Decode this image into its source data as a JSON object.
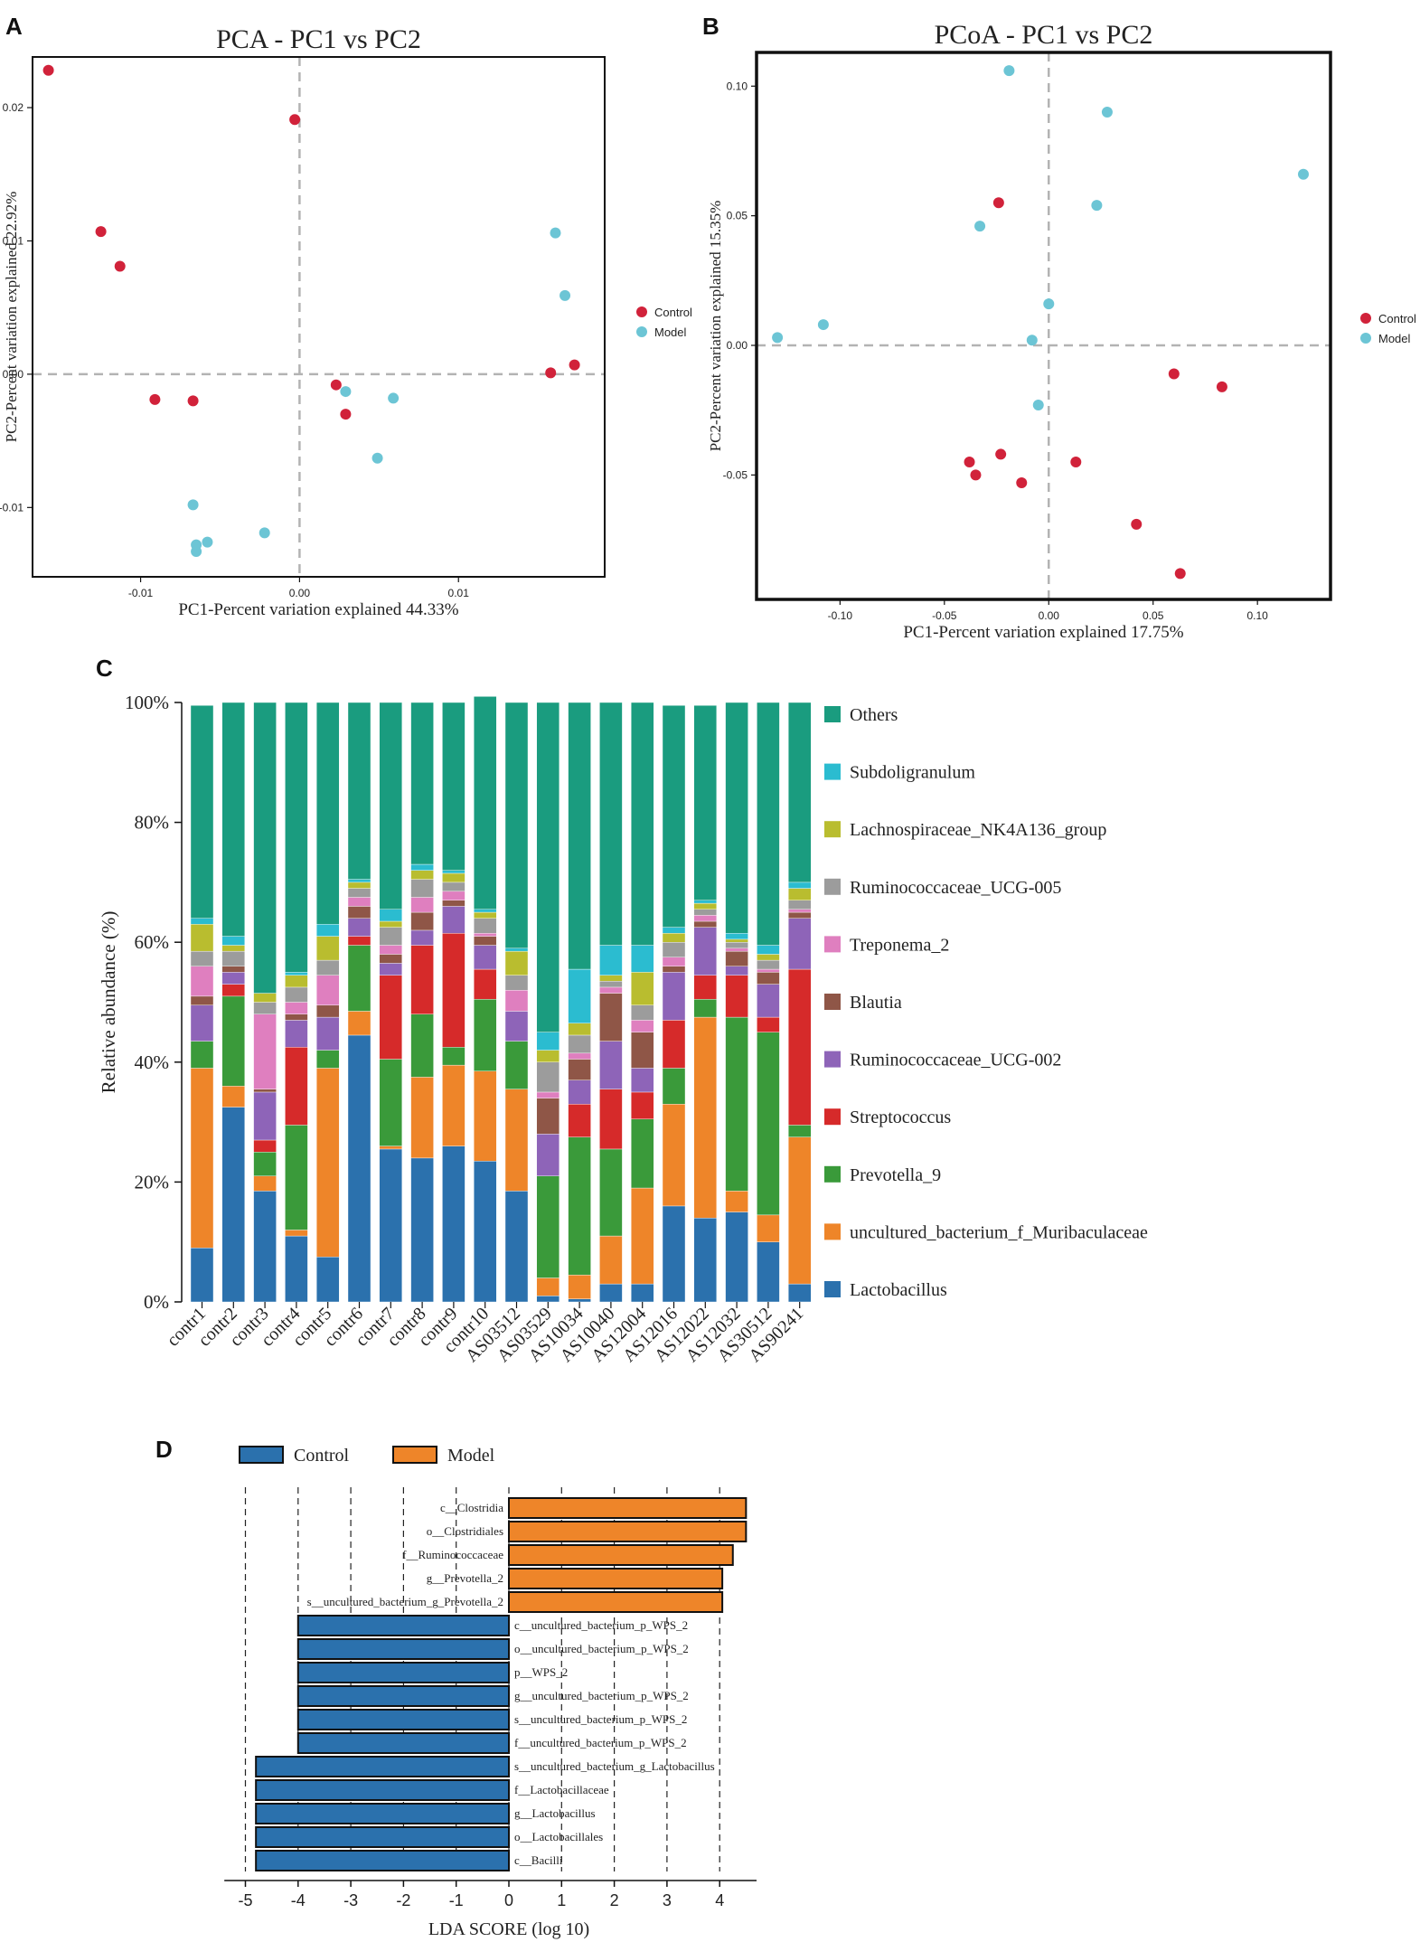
{
  "panels": {
    "a": "A",
    "b": "B",
    "c": "C",
    "d": "D"
  },
  "colors": {
    "control": "#d1223a",
    "model": "#6cc5d5",
    "lda_control": "#2b71ad",
    "lda_model": "#ee8529",
    "dashed": "#b3b3b3"
  },
  "chart_data": [
    {
      "id": "pca",
      "type": "scatter",
      "title": "PCA - PC1 vs PC2",
      "xlabel": "PC1-Percent variation explained 44.33%",
      "ylabel": "PC2-Percent variation explained 22.92%",
      "xlim": [
        -0.0168,
        0.0192
      ],
      "ylim": [
        -0.0152,
        0.0238
      ],
      "xticks": [
        -0.01,
        0.0,
        0.01
      ],
      "xtick_labels": [
        "-0.01",
        "0.00",
        "0.01"
      ],
      "yticks": [
        -0.01,
        0.0,
        0.01,
        0.02
      ],
      "ytick_labels": [
        "-0.01",
        "0.00",
        "0.01",
        "0.02"
      ],
      "legend": [
        "Control",
        "Model"
      ],
      "legend_position": "right",
      "series": [
        {
          "name": "Control",
          "points": [
            [
              -0.0158,
              0.0228
            ],
            [
              -0.0003,
              0.0191
            ],
            [
              -0.0125,
              0.0107
            ],
            [
              -0.0113,
              0.0081
            ],
            [
              -0.0091,
              -0.0019
            ],
            [
              -0.0067,
              -0.002
            ],
            [
              0.0023,
              -0.0008
            ],
            [
              0.0029,
              -0.003
            ],
            [
              0.0158,
              0.0001
            ],
            [
              0.0173,
              0.0007
            ]
          ]
        },
        {
          "name": "Model",
          "points": [
            [
              0.0161,
              0.0106
            ],
            [
              0.0167,
              0.0059
            ],
            [
              0.0029,
              -0.0013
            ],
            [
              0.0059,
              -0.0018
            ],
            [
              0.0049,
              -0.0063
            ],
            [
              -0.0067,
              -0.0098
            ],
            [
              -0.0022,
              -0.0119
            ],
            [
              -0.0058,
              -0.0126
            ],
            [
              -0.0065,
              -0.0128
            ],
            [
              -0.0065,
              -0.0133
            ]
          ]
        }
      ]
    },
    {
      "id": "pcoa",
      "type": "scatter",
      "title": "PCoA - PC1 vs PC2",
      "xlabel": "PC1-Percent variation explained 17.75%",
      "ylabel": "PC2-Percent variation explained 15.35%",
      "xlim": [
        -0.14,
        0.135
      ],
      "ylim": [
        -0.098,
        0.113
      ],
      "xticks": [
        -0.1,
        -0.05,
        0.0,
        0.05,
        0.1
      ],
      "xtick_labels": [
        "-0.10",
        "-0.05",
        "0.00",
        "0.05",
        "0.10"
      ],
      "yticks": [
        -0.05,
        0.0,
        0.05,
        0.1
      ],
      "ytick_labels": [
        "-0.05",
        "0.00",
        "0.05",
        "0.10"
      ],
      "legend": [
        "Control",
        "Model"
      ],
      "legend_position": "right",
      "series": [
        {
          "name": "Control",
          "points": [
            [
              -0.024,
              0.055
            ],
            [
              0.06,
              -0.011
            ],
            [
              0.083,
              -0.016
            ],
            [
              -0.023,
              -0.042
            ],
            [
              -0.038,
              -0.045
            ],
            [
              -0.035,
              -0.05
            ],
            [
              -0.013,
              -0.053
            ],
            [
              0.013,
              -0.045
            ],
            [
              0.042,
              -0.069
            ],
            [
              0.063,
              -0.088
            ]
          ]
        },
        {
          "name": "Model",
          "points": [
            [
              -0.019,
              0.106
            ],
            [
              0.028,
              0.09
            ],
            [
              0.122,
              0.066
            ],
            [
              0.023,
              0.054
            ],
            [
              -0.033,
              0.046
            ],
            [
              0.0,
              0.016
            ],
            [
              -0.13,
              0.003
            ],
            [
              -0.108,
              0.008
            ],
            [
              -0.008,
              0.002
            ],
            [
              -0.005,
              -0.023
            ]
          ]
        }
      ]
    },
    {
      "id": "composition",
      "type": "bar",
      "stacked": true,
      "ylabel": "Relative abundance (%)",
      "ylim": [
        0,
        100
      ],
      "yticks": [
        0,
        20,
        40,
        60,
        80,
        100
      ],
      "ytick_labels": [
        "0%",
        "20%",
        "40%",
        "60%",
        "80%",
        "100%"
      ],
      "categories": [
        "contr1",
        "contr2",
        "contr3",
        "contr4",
        "contr5",
        "contr6",
        "contr7",
        "contr8",
        "contr9",
        "contr10",
        "AS03512",
        "AS03529",
        "AS10034",
        "AS10040",
        "AS12004",
        "AS12016",
        "AS12022",
        "AS12032",
        "AS30512",
        "AS90241"
      ],
      "series": [
        {
          "name": "Lactobacillus",
          "color": "#2b71ad",
          "values": [
            9,
            32.5,
            18.5,
            11,
            7.5,
            44.5,
            25.5,
            24,
            26,
            23.5,
            18.5,
            1,
            0.5,
            3,
            3,
            16,
            14,
            15,
            10,
            3
          ]
        },
        {
          "name": "uncultured_bacterium_f_Muribaculaceae",
          "color": "#ee8529",
          "values": [
            30,
            3.5,
            2.5,
            1,
            31.5,
            4,
            0.5,
            13.5,
            13.5,
            15,
            17,
            3,
            4,
            8,
            16,
            17,
            33.5,
            3.5,
            4.5,
            24.5
          ]
        },
        {
          "name": "Prevotella_9",
          "color": "#3a9a3a",
          "values": [
            4.5,
            15,
            4,
            17.5,
            3,
            11,
            14.5,
            10.5,
            3,
            12,
            8,
            17,
            23,
            14.5,
            11.5,
            6,
            3,
            29,
            30.5,
            2
          ]
        },
        {
          "name": "Streptococcus",
          "color": "#d62a2a",
          "values": [
            0,
            2,
            2,
            13,
            0,
            1.5,
            14,
            11.5,
            19,
            5,
            0,
            0,
            5.5,
            10,
            4.5,
            8,
            4,
            7,
            2.5,
            26
          ]
        },
        {
          "name": "Ruminococcaceae_UCG-002",
          "color": "#8e64b8",
          "values": [
            6,
            2,
            8,
            4.5,
            5.5,
            3,
            2,
            2.5,
            4.5,
            4,
            5,
            7,
            4,
            8,
            4,
            8,
            8,
            1.5,
            5.5,
            8.5
          ]
        },
        {
          "name": "Blautia",
          "color": "#8f5647",
          "values": [
            1.5,
            1,
            0.5,
            1,
            2,
            2,
            1.5,
            3,
            1,
            1.5,
            0,
            6,
            3.5,
            8,
            6,
            1,
            1,
            2.5,
            2,
            1
          ]
        },
        {
          "name": "Treponema_2",
          "color": "#df7fbf",
          "values": [
            5,
            0,
            12.5,
            2,
            5,
            1.5,
            1.5,
            2.5,
            1.5,
            0.5,
            3.5,
            1,
            1,
            1,
            2,
            1.5,
            1,
            0.5,
            0.5,
            0.5
          ]
        },
        {
          "name": "Ruminococcaceae_UCG-005",
          "color": "#9c9c9c",
          "values": [
            2.5,
            2.5,
            2,
            2.5,
            2.5,
            1.5,
            3,
            3,
            1.5,
            2.5,
            2.5,
            5,
            3,
            1,
            2.5,
            2.5,
            1,
            1,
            1.5,
            1.5
          ]
        },
        {
          "name": "Lachnospiraceae_NK4A136_group",
          "color": "#b9bd2f",
          "values": [
            4.5,
            1,
            1.5,
            2,
            4,
            1,
            1,
            1.5,
            1.5,
            1,
            4,
            2,
            2,
            1,
            5.5,
            1.5,
            1,
            0.5,
            1,
            2
          ]
        },
        {
          "name": "Subdoligranulum",
          "color": "#2bbcd0",
          "values": [
            1,
            1.5,
            0,
            0.5,
            2,
            0.5,
            2,
            1,
            0.5,
            0.5,
            0.5,
            3,
            9,
            5,
            4.5,
            1,
            0.5,
            1,
            1.5,
            1
          ]
        },
        {
          "name": "Others",
          "color": "#1a9c7f",
          "values": [
            35.5,
            39,
            48.5,
            45,
            37,
            29.5,
            34.5,
            27,
            28,
            35.5,
            41,
            55,
            44.5,
            40.5,
            40.5,
            37,
            32.5,
            38.5,
            40.5,
            30
          ]
        }
      ]
    },
    {
      "id": "lefse",
      "type": "bar",
      "orientation": "horizontal",
      "xlabel": "LDA SCORE (log 10)",
      "xlim": [
        -5.4,
        4.7
      ],
      "xticks": [
        -5,
        -4,
        -3,
        -2,
        -1,
        0,
        1,
        2,
        3,
        4
      ],
      "xtick_labels": [
        "-5",
        "-4",
        "-3",
        "-2",
        "-1",
        "0",
        "1",
        "2",
        "3",
        "4"
      ],
      "legend": [
        "Control",
        "Model"
      ],
      "legend_position": "top-left",
      "categories": [
        "c__Clostridia",
        "o__Clostridiales",
        "f__Ruminococcaceae",
        "g__Prevotella_2",
        "s__uncultured_bacterium_g_Prevotella_2",
        "c__uncultured_bacterium_p_WPS_2",
        "o__uncultured_bacterium_p_WPS_2",
        "p__WPS_2",
        "g__uncultured_bacterium_p_WPS_2",
        "s__uncultured_bacterium_p_WPS_2",
        "f__uncultured_bacterium_p_WPS_2",
        "s__uncultured_bacterium_g_Lactobacillus",
        "f__Lactobacillaceae",
        "g__Lactobacillus",
        "o__Lactobacillales",
        "c__Bacilli"
      ],
      "values": [
        4.5,
        4.5,
        4.25,
        4.05,
        4.05,
        -4.0,
        -4.0,
        -4.0,
        -4.0,
        -4.0,
        -4.0,
        -4.8,
        -4.8,
        -4.8,
        -4.8,
        -4.8
      ],
      "groups": [
        "Model",
        "Model",
        "Model",
        "Model",
        "Model",
        "Control",
        "Control",
        "Control",
        "Control",
        "Control",
        "Control",
        "Control",
        "Control",
        "Control",
        "Control",
        "Control"
      ]
    }
  ]
}
